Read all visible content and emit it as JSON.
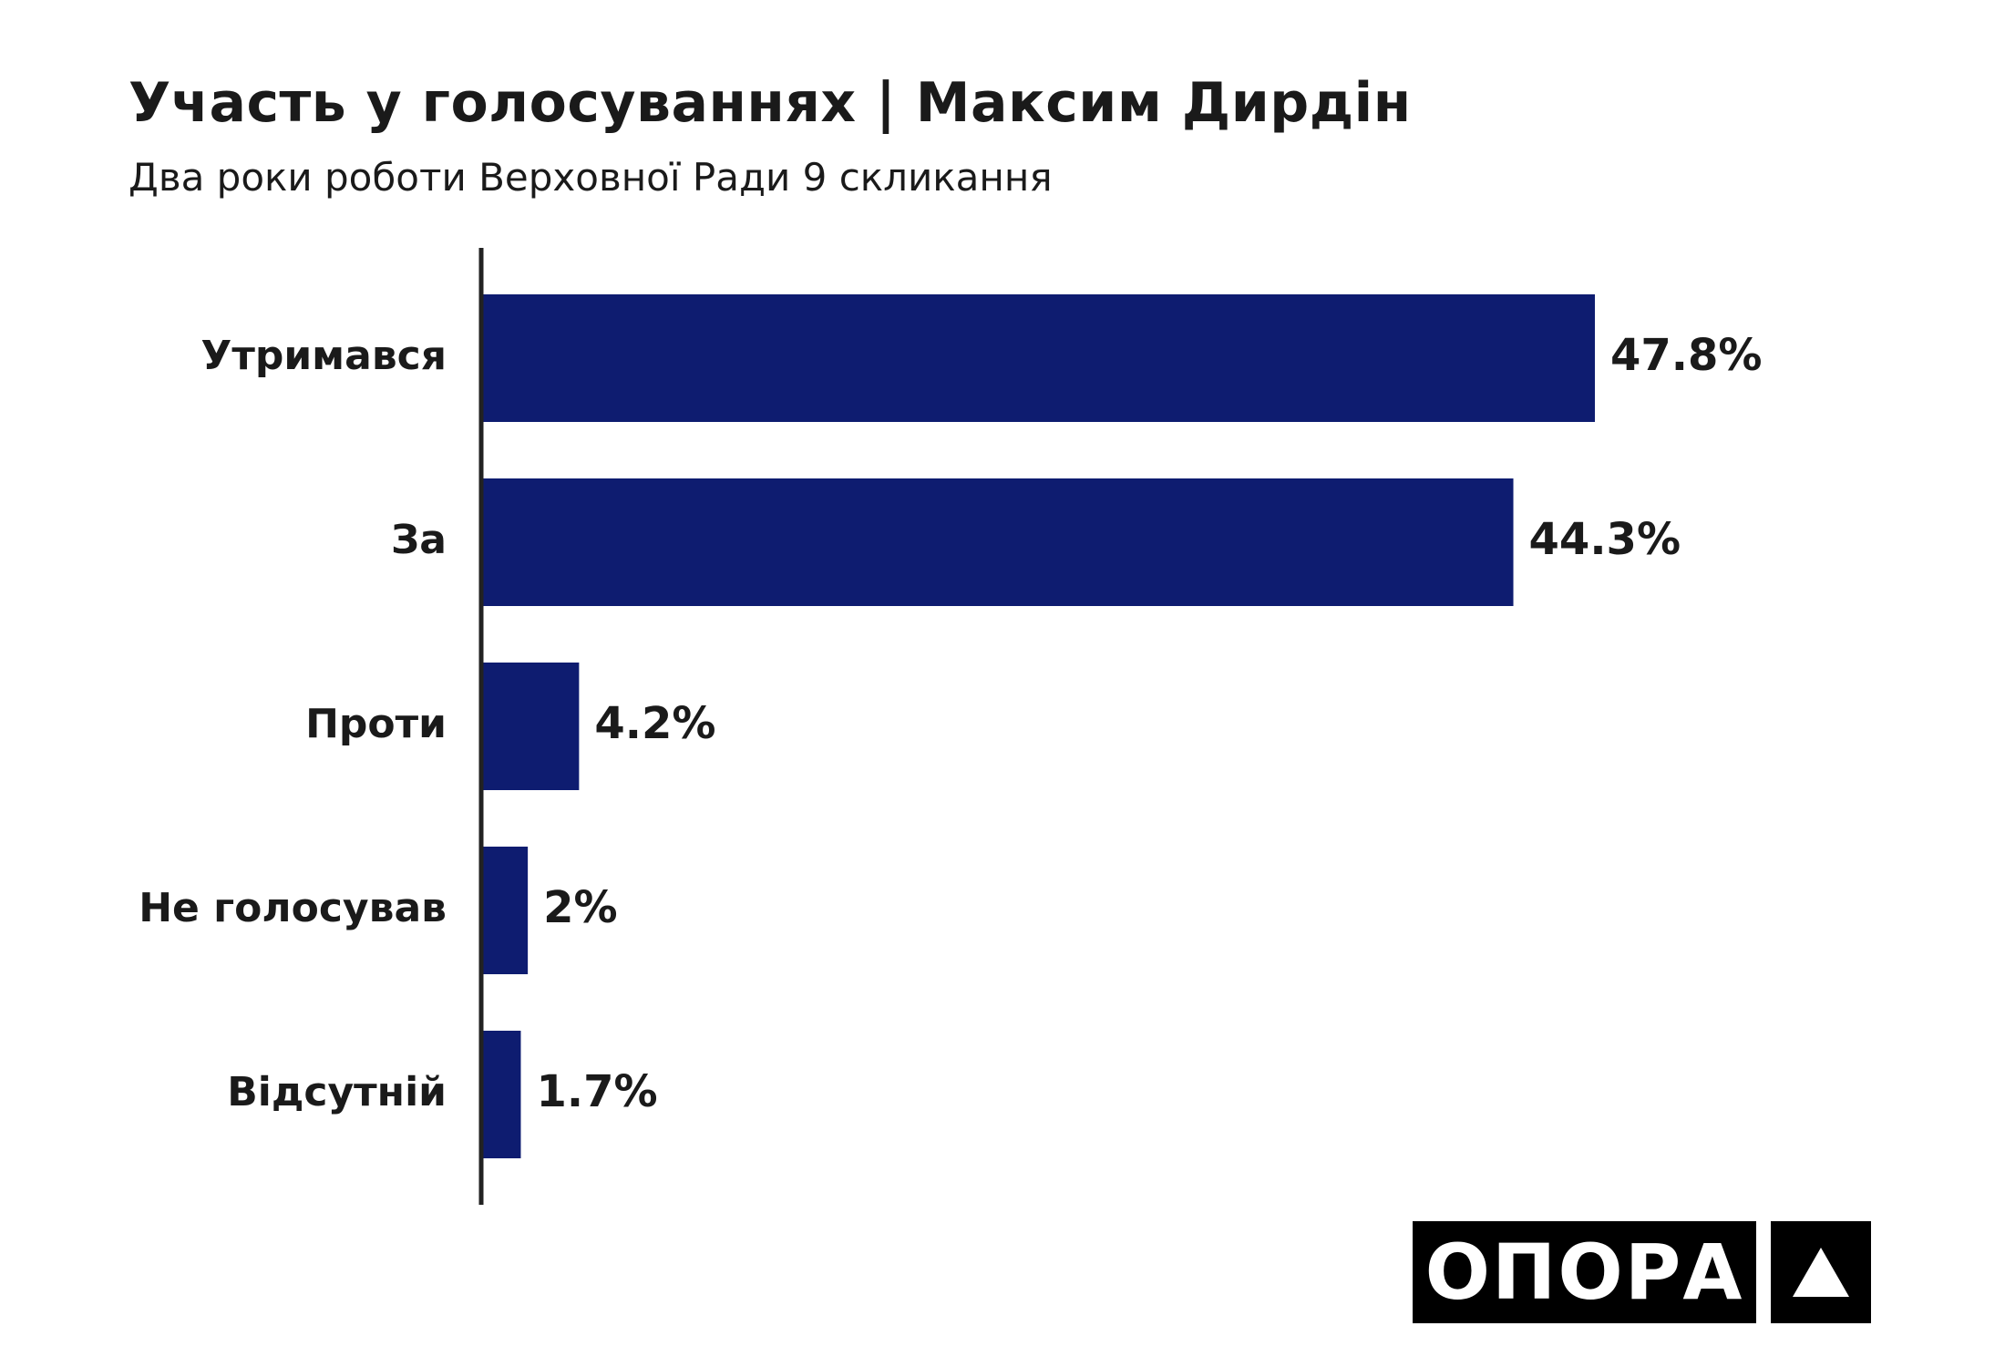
{
  "header": {
    "title": "Участь у голосуваннях | Максим Дирдін",
    "subtitle": "Два роки роботи Верховної Ради 9 скликання"
  },
  "brand": {
    "wordmark": "ОПОРА",
    "mark_icon": "triangle-up-icon"
  },
  "colors": {
    "bar": "#0e1c70",
    "text": "#1a1a1a",
    "axis": "#222222",
    "logo_bg": "#000000"
  },
  "chart_data": {
    "type": "bar",
    "orientation": "horizontal",
    "categories": [
      "Утримався",
      "За",
      "Проти",
      "Не голосував",
      "Відсутній"
    ],
    "values": [
      47.8,
      44.3,
      4.2,
      2,
      1.7
    ],
    "value_labels": [
      "47.8%",
      "44.3%",
      "4.2%",
      "2%",
      "1.7%"
    ],
    "title": "Участь у голосуваннях | Максим Дирдін",
    "subtitle": "Два роки роботи Верховної Ради 9 скликання",
    "xlabel": "",
    "ylabel": "",
    "xlim": [
      0,
      50
    ],
    "grid": false,
    "legend": "none"
  }
}
